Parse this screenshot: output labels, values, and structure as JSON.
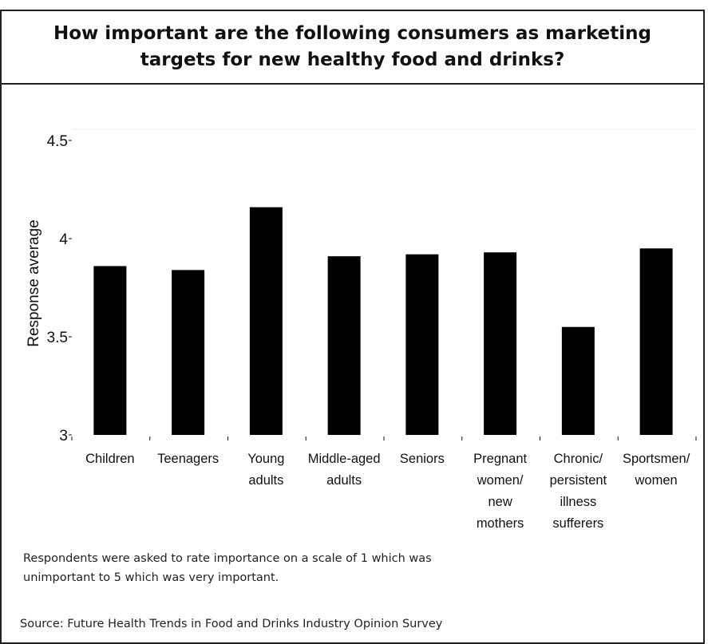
{
  "title": "How important are the following consumers as marketing targets for new healthy food and drinks?",
  "note": "Respondents were asked to rate importance on a scale of 1 which was unimportant to 5 which was very important.",
  "source": "Source: Future Health Trends in Food and Drinks Industry Opinion Survey",
  "chart_data": {
    "type": "bar",
    "ylabel": "Response average",
    "xlabel": "",
    "ylim": [
      3,
      4.5
    ],
    "yticks": [
      3,
      3.5,
      4,
      4.5
    ],
    "ytick_labels": [
      "3",
      "3.5",
      "4",
      "4.5"
    ],
    "grid": false,
    "categories": [
      [
        "Children"
      ],
      [
        "Teenagers"
      ],
      [
        "Young",
        "adults"
      ],
      [
        "Middle-aged",
        "adults"
      ],
      [
        "Seniors"
      ],
      [
        "Pregnant",
        "women/",
        "new",
        "mothers"
      ],
      [
        "Chronic/",
        "persistent",
        "illness",
        "sufferers"
      ],
      [
        "Sportsmen/",
        "women"
      ]
    ],
    "values": [
      3.86,
      3.84,
      4.16,
      3.91,
      3.92,
      3.93,
      3.55,
      3.95
    ],
    "bar_color": "#000000"
  }
}
